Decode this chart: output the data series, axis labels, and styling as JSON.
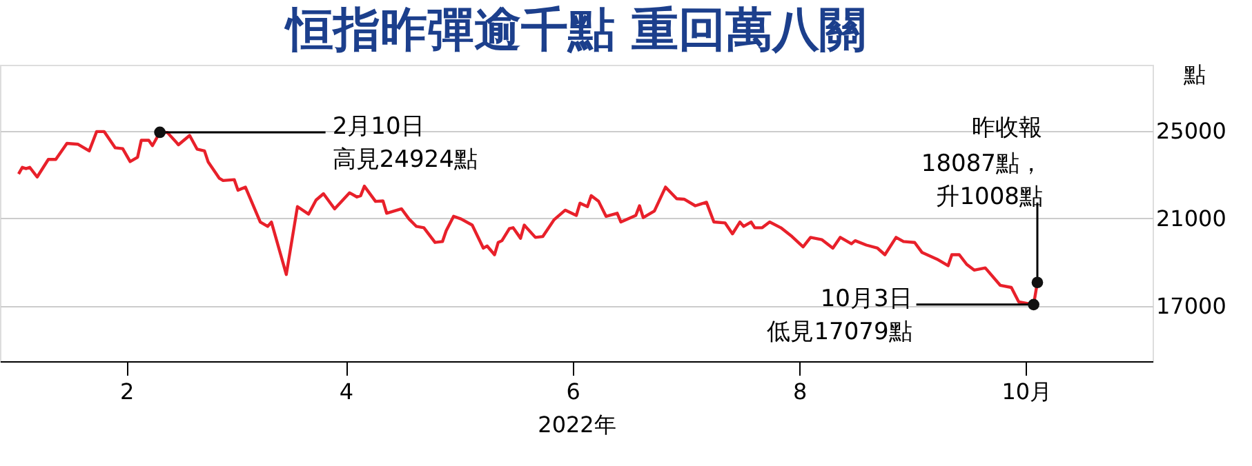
{
  "chart_data": {
    "type": "line",
    "title": "恒指昨彈逾千點  重回萬八關",
    "xlabel": "2022年",
    "ylabel": "點",
    "x": [
      "2022-01-03",
      "2022-01-04",
      "2022-01-05",
      "2022-01-06",
      "2022-01-08",
      "2022-01-11",
      "2022-01-13",
      "2022-01-16",
      "2022-01-19",
      "2022-01-22",
      "2022-01-24",
      "2022-01-26",
      "2022-01-29",
      "2022-01-31",
      "2022-02-02",
      "2022-02-04",
      "2022-02-05",
      "2022-02-07",
      "2022-02-08",
      "2022-02-10",
      "2022-02-12",
      "2022-02-15",
      "2022-02-18",
      "2022-02-20",
      "2022-02-22",
      "2022-02-23",
      "2022-02-26",
      "2022-02-27",
      "2022-03-02",
      "2022-03-03",
      "2022-03-05",
      "2022-03-09",
      "2022-03-11",
      "2022-03-12",
      "2022-03-16",
      "2022-03-19",
      "2022-03-22",
      "2022-03-24",
      "2022-03-26",
      "2022-03-29",
      "2022-04-02",
      "2022-04-04",
      "2022-04-05",
      "2022-04-06",
      "2022-04-09",
      "2022-04-11",
      "2022-04-12",
      "2022-04-16",
      "2022-04-18",
      "2022-04-20",
      "2022-04-22",
      "2022-04-25",
      "2022-04-27",
      "2022-04-28",
      "2022-04-30",
      "2022-05-02",
      "2022-05-05",
      "2022-05-08",
      "2022-05-09",
      "2022-05-11",
      "2022-05-12",
      "2022-05-13",
      "2022-05-15",
      "2022-05-16",
      "2022-05-18",
      "2022-05-19",
      "2022-05-22",
      "2022-05-24",
      "2022-05-27",
      "2022-05-30",
      "2022-06-02",
      "2022-06-03",
      "2022-06-05",
      "2022-06-06",
      "2022-06-08",
      "2022-06-10",
      "2022-06-13",
      "2022-06-14",
      "2022-06-18",
      "2022-06-19",
      "2022-06-20",
      "2022-06-23",
      "2022-06-26",
      "2022-06-29",
      "2022-07-01",
      "2022-07-04",
      "2022-07-07",
      "2022-07-09",
      "2022-07-12",
      "2022-07-14",
      "2022-07-16",
      "2022-07-17",
      "2022-07-19",
      "2022-07-20",
      "2022-07-22",
      "2022-07-24",
      "2022-07-27",
      "2022-07-30",
      "2022-08-02",
      "2022-08-04",
      "2022-08-07",
      "2022-08-10",
      "2022-08-12",
      "2022-08-15",
      "2022-08-16",
      "2022-08-19",
      "2022-08-22",
      "2022-08-24",
      "2022-08-27",
      "2022-08-29",
      "2022-09-01",
      "2022-09-03",
      "2022-09-07",
      "2022-09-10",
      "2022-09-11",
      "2022-09-13",
      "2022-09-15",
      "2022-09-17",
      "2022-09-20",
      "2022-09-24",
      "2022-09-27",
      "2022-09-29",
      "2022-10-03",
      "2022-10-04"
    ],
    "series": [
      {
        "color": "#e8202a",
        "values": [
          23030,
          23330,
          23270,
          23330,
          22890,
          23690,
          23690,
          24420,
          24380,
          24080,
          24960,
          24960,
          24220,
          24180,
          23590,
          23790,
          24560,
          24560,
          24320,
          24924,
          24920,
          24360,
          24780,
          24160,
          24080,
          23570,
          22830,
          22730,
          22770,
          22290,
          22430,
          20840,
          20640,
          20840,
          18450,
          21540,
          21200,
          21840,
          22130,
          21440,
          22170,
          21980,
          22040,
          22470,
          21780,
          21800,
          21240,
          21440,
          20980,
          20640,
          20580,
          19910,
          19950,
          20440,
          21100,
          20980,
          20700,
          19650,
          19750,
          19350,
          19910,
          19990,
          20540,
          20580,
          20100,
          20700,
          20140,
          20180,
          20940,
          21380,
          21140,
          21700,
          21540,
          22040,
          21780,
          21100,
          21240,
          20840,
          21140,
          21580,
          21040,
          21340,
          22430,
          21900,
          21880,
          21580,
          21740,
          20840,
          20800,
          20300,
          20840,
          20640,
          20840,
          20580,
          20580,
          20840,
          20580,
          20180,
          19710,
          20140,
          20040,
          19650,
          20140,
          19850,
          19990,
          19790,
          19650,
          19350,
          20140,
          19950,
          19910,
          19450,
          19150,
          18850,
          19350,
          19350,
          18910,
          18650,
          18750,
          17960,
          17860,
          17200,
          17079,
          18087
        ]
      }
    ],
    "xlim": [
      "2021-12-29",
      "2022-11-04"
    ],
    "xticks": [
      {
        "value": "2022-02-01",
        "label": "2"
      },
      {
        "value": "2022-04-01",
        "label": "4"
      },
      {
        "value": "2022-06-01",
        "label": "6"
      },
      {
        "value": "2022-08-01",
        "label": "8"
      },
      {
        "value": "2022-10-01",
        "label": "10月"
      }
    ],
    "ylim": [
      14500,
      28000
    ],
    "yticks": [
      17000,
      21000,
      25000
    ],
    "grid": "y",
    "marker": "none",
    "line_style": "solid",
    "annotations": [
      {
        "text": "2月10日",
        "x": "2022-02-10",
        "y": 24924
      },
      {
        "text": "高見24924點",
        "x": "2022-02-10",
        "y": 24924
      },
      {
        "text": "10月3日",
        "x": "2022-10-03",
        "y": 17079
      },
      {
        "text": "低見17079點",
        "x": "2022-10-03",
        "y": 17079
      },
      "昨收報",
      {
        "text": "18087點，",
        "x": "2022-10-04",
        "y": 18087
      },
      {
        "text": "升1008點",
        "x": "2022-10-04",
        "y": 18087
      }
    ]
  }
}
